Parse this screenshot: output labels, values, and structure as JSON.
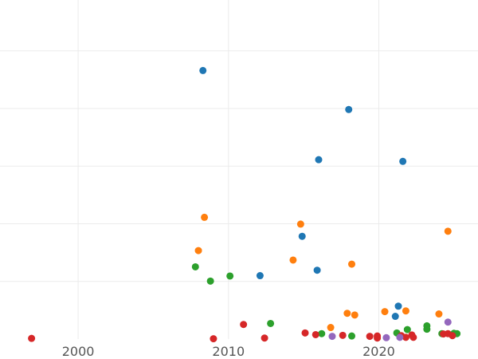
{
  "chart_data": {
    "type": "scatter",
    "title": "",
    "xlabel": "",
    "ylabel": "",
    "xlim": [
      1994.8,
      2026.6
    ],
    "ylim": [
      0,
      100
    ],
    "x_ticks": [
      2000,
      2010,
      2020
    ],
    "x_tick_labels": [
      "2000",
      "2010",
      "2020"
    ],
    "y_gridlines": [
      17,
      34,
      51,
      68,
      85
    ],
    "y_tick_labels": [],
    "grid": true,
    "legend": null,
    "series": [
      {
        "name": "blue",
        "color": "#1f77b4",
        "points": [
          {
            "x": 2008.3,
            "y": 79.2
          },
          {
            "x": 2018.0,
            "y": 67.7
          },
          {
            "x": 2016.0,
            "y": 52.9
          },
          {
            "x": 2021.6,
            "y": 52.4
          },
          {
            "x": 2014.9,
            "y": 30.3
          },
          {
            "x": 2015.9,
            "y": 20.3
          },
          {
            "x": 2012.1,
            "y": 18.7
          },
          {
            "x": 2021.1,
            "y": 6.7
          },
          {
            "x": 2021.3,
            "y": 9.7
          }
        ]
      },
      {
        "name": "orange",
        "color": "#ff7f0e",
        "points": [
          {
            "x": 2008.4,
            "y": 35.9
          },
          {
            "x": 2014.8,
            "y": 33.9
          },
          {
            "x": 2024.6,
            "y": 31.8
          },
          {
            "x": 2008.0,
            "y": 26.1
          },
          {
            "x": 2014.3,
            "y": 23.3
          },
          {
            "x": 2018.2,
            "y": 22.1
          },
          {
            "x": 2017.9,
            "y": 7.6
          },
          {
            "x": 2018.4,
            "y": 7.1
          },
          {
            "x": 2020.4,
            "y": 8.1
          },
          {
            "x": 2021.8,
            "y": 8.3
          },
          {
            "x": 2024.0,
            "y": 7.4
          },
          {
            "x": 2016.8,
            "y": 3.4
          }
        ]
      },
      {
        "name": "green",
        "color": "#2ca02c",
        "points": [
          {
            "x": 2007.8,
            "y": 21.3
          },
          {
            "x": 2008.8,
            "y": 17.1
          },
          {
            "x": 2010.1,
            "y": 18.6
          },
          {
            "x": 2012.8,
            "y": 4.6
          },
          {
            "x": 2016.2,
            "y": 1.6
          },
          {
            "x": 2018.2,
            "y": 0.9
          },
          {
            "x": 2021.2,
            "y": 1.8
          },
          {
            "x": 2021.9,
            "y": 2.8
          },
          {
            "x": 2023.2,
            "y": 3.9
          },
          {
            "x": 2023.2,
            "y": 2.9
          },
          {
            "x": 2024.2,
            "y": 1.6
          },
          {
            "x": 2025.0,
            "y": 1.7
          },
          {
            "x": 2025.2,
            "y": 1.6
          }
        ]
      },
      {
        "name": "red",
        "color": "#d62728",
        "points": [
          {
            "x": 1996.9,
            "y": 0.2
          },
          {
            "x": 2009.0,
            "y": 0.1
          },
          {
            "x": 2011.0,
            "y": 4.3
          },
          {
            "x": 2012.4,
            "y": 0.3
          },
          {
            "x": 2015.1,
            "y": 1.8
          },
          {
            "x": 2015.8,
            "y": 1.3
          },
          {
            "x": 2017.6,
            "y": 1.1
          },
          {
            "x": 2019.4,
            "y": 0.8
          },
          {
            "x": 2019.9,
            "y": 0.9
          },
          {
            "x": 2019.9,
            "y": 0.3
          },
          {
            "x": 2021.5,
            "y": 1.0
          },
          {
            "x": 2021.8,
            "y": 0.5
          },
          {
            "x": 2022.2,
            "y": 1.2
          },
          {
            "x": 2022.3,
            "y": 0.5
          },
          {
            "x": 2024.3,
            "y": 1.5
          },
          {
            "x": 2024.6,
            "y": 1.6
          },
          {
            "x": 2024.9,
            "y": 1.0
          }
        ]
      },
      {
        "name": "purple",
        "color": "#9467bd",
        "points": [
          {
            "x": 2016.9,
            "y": 0.8
          },
          {
            "x": 2020.5,
            "y": 0.4
          },
          {
            "x": 2021.4,
            "y": 0.5
          },
          {
            "x": 2024.6,
            "y": 5.0
          }
        ]
      }
    ]
  }
}
